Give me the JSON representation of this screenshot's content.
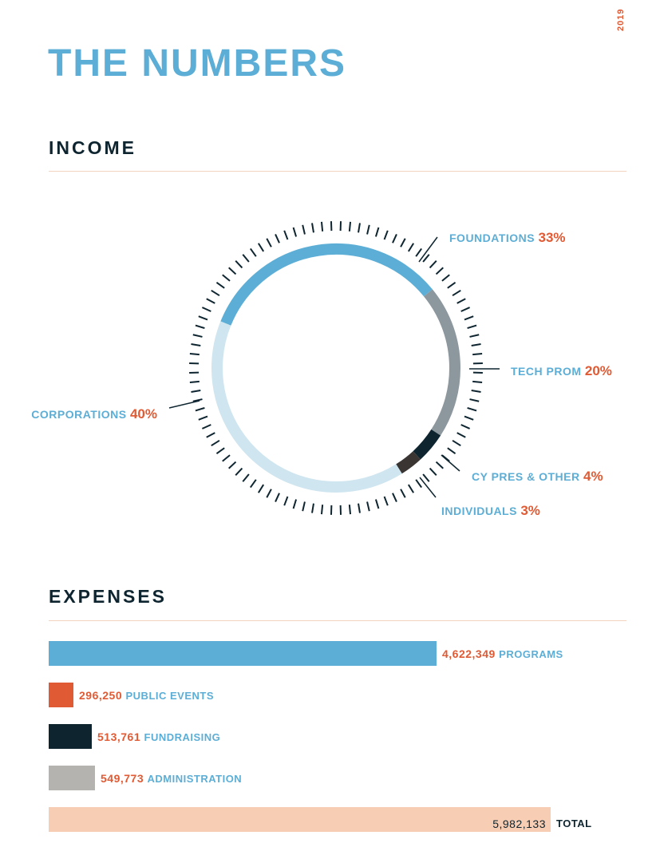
{
  "page": {
    "year": "2019",
    "title": "THE NUMBERS"
  },
  "chart_data": [
    {
      "type": "pie",
      "title": "INCOME",
      "slices": [
        {
          "label": "FOUNDATIONS",
          "value": 33,
          "display": "33%",
          "color": "#5caed6"
        },
        {
          "label": "TECH PROM",
          "value": 20,
          "display": "20%",
          "color": "#8d979e"
        },
        {
          "label": "CY PRES & OTHER",
          "value": 4,
          "display": "4%",
          "color": "#0e2530"
        },
        {
          "label": "INDIVIDUALS",
          "value": 3,
          "display": "3%",
          "color": "#3a3533"
        },
        {
          "label": "CORPORATIONS",
          "value": 40,
          "display": "40%",
          "color": "#cfe5ef"
        }
      ],
      "colors": {
        "label": "#5caed6",
        "value": "#e05a34",
        "tick": "#0e2530"
      }
    },
    {
      "type": "bar",
      "title": "EXPENSES",
      "bars": [
        {
          "label": "PROGRAMS",
          "value": 4622349,
          "display": "4,622,349",
          "color": "#5caed6"
        },
        {
          "label": "PUBLIC EVENTS",
          "value": 296250,
          "display": "296,250",
          "color": "#e05a34"
        },
        {
          "label": "FUNDRAISING",
          "value": 513761,
          "display": "513,761",
          "color": "#0e2530"
        },
        {
          "label": "ADMINISTRATION",
          "value": 549773,
          "display": "549,773",
          "color": "#b5b3b0"
        }
      ],
      "total": {
        "label": "TOTAL",
        "value": 5982133,
        "display": "5,982,133",
        "color": "#f7cdb4"
      }
    }
  ]
}
